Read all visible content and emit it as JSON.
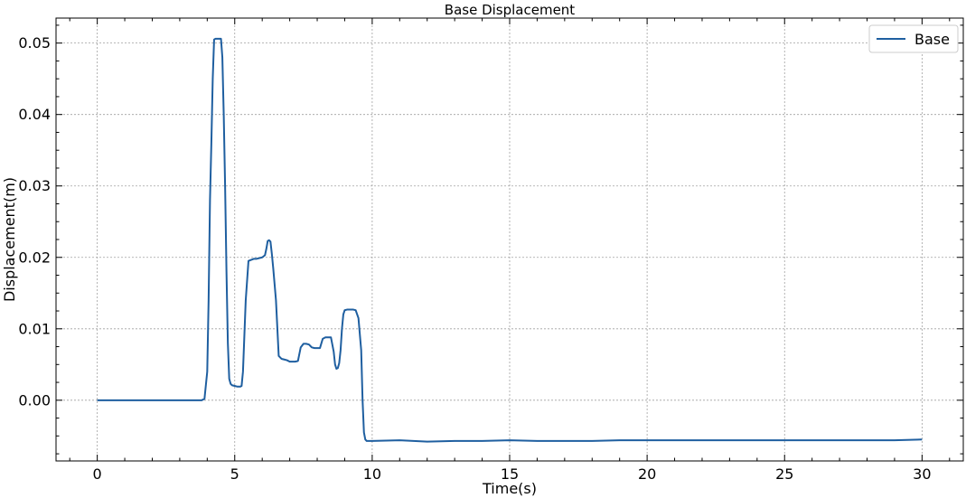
{
  "chart_data": {
    "type": "line",
    "title": "Base Displacement",
    "xlabel": "Time(s)",
    "ylabel": "Displacement(m)",
    "xlim": [
      -1.5,
      31.5
    ],
    "ylim": [
      -0.0085,
      0.0535
    ],
    "xticks": [
      0,
      5,
      10,
      15,
      20,
      25,
      30
    ],
    "xtick_labels": [
      "0",
      "5",
      "10",
      "15",
      "20",
      "25",
      "30"
    ],
    "yticks": [
      0.0,
      0.01,
      0.02,
      0.03,
      0.04,
      0.05
    ],
    "ytick_labels": [
      "0.00",
      "0.01",
      "0.02",
      "0.03",
      "0.04",
      "0.05"
    ],
    "grid": true,
    "legend_position": "top-right",
    "series": [
      {
        "name": "Base",
        "color": "#1f5fa0",
        "x": [
          0,
          1,
          2,
          3,
          3.5,
          3.8,
          3.9,
          4.0,
          4.05,
          4.1,
          4.15,
          4.2,
          4.25,
          4.3,
          4.5,
          4.55,
          4.6,
          4.65,
          4.7,
          4.75,
          4.8,
          4.85,
          4.9,
          5.0,
          5.1,
          5.2,
          5.25,
          5.3,
          5.35,
          5.4,
          5.5,
          5.7,
          5.8,
          6.0,
          6.1,
          6.15,
          6.2,
          6.25,
          6.3,
          6.35,
          6.4,
          6.5,
          6.6,
          6.7,
          6.8,
          6.9,
          7.0,
          7.1,
          7.2,
          7.3,
          7.4,
          7.5,
          7.6,
          7.7,
          7.8,
          7.9,
          8.0,
          8.1,
          8.2,
          8.3,
          8.4,
          8.5,
          8.6,
          8.65,
          8.7,
          8.75,
          8.8,
          8.85,
          8.9,
          8.95,
          9.0,
          9.1,
          9.2,
          9.3,
          9.4,
          9.5,
          9.6,
          9.65,
          9.7,
          9.75,
          9.8,
          9.9,
          10.0,
          11,
          12,
          13,
          14,
          15,
          16,
          17,
          18,
          19,
          20,
          21,
          22,
          23,
          24,
          25,
          26,
          27,
          28,
          29,
          30
        ],
        "y": [
          0.0,
          0.0,
          0.0,
          0.0,
          0.0,
          0.0,
          0.0002,
          0.004,
          0.014,
          0.028,
          0.036,
          0.045,
          0.0505,
          0.0506,
          0.0506,
          0.048,
          0.04,
          0.03,
          0.018,
          0.008,
          0.003,
          0.0023,
          0.0021,
          0.002,
          0.0019,
          0.0019,
          0.002,
          0.004,
          0.009,
          0.014,
          0.0195,
          0.0198,
          0.0198,
          0.02,
          0.0203,
          0.0212,
          0.0223,
          0.0224,
          0.0222,
          0.0205,
          0.0185,
          0.014,
          0.0062,
          0.0058,
          0.0057,
          0.0056,
          0.0054,
          0.0054,
          0.0054,
          0.0055,
          0.0074,
          0.0079,
          0.0079,
          0.0078,
          0.0074,
          0.0073,
          0.0073,
          0.0073,
          0.0086,
          0.0088,
          0.0088,
          0.0088,
          0.0068,
          0.005,
          0.0044,
          0.0045,
          0.0052,
          0.007,
          0.01,
          0.012,
          0.0126,
          0.0127,
          0.0127,
          0.0127,
          0.0126,
          0.0115,
          0.007,
          0.0,
          -0.0045,
          -0.0055,
          -0.0057,
          -0.0057,
          -0.0057,
          -0.0056,
          -0.0058,
          -0.0057,
          -0.0057,
          -0.0056,
          -0.0057,
          -0.0057,
          -0.0057,
          -0.0056,
          -0.0056,
          -0.0056,
          -0.0056,
          -0.0056,
          -0.0056,
          -0.0056,
          -0.0056,
          -0.0056,
          -0.0056,
          -0.0056,
          -0.0055
        ]
      }
    ]
  }
}
